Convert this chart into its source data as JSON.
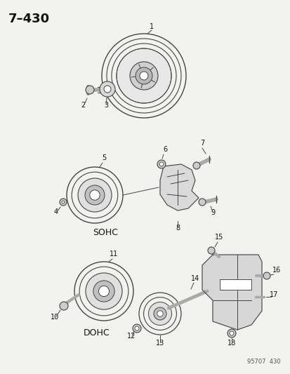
{
  "title": "7–430",
  "background_color": "#f2f2ee",
  "page_number": "95707  430",
  "line_color": "#444444",
  "text_color": "#111111",
  "font_size_title": 13,
  "font_size_label": 7,
  "font_size_caption": 8
}
